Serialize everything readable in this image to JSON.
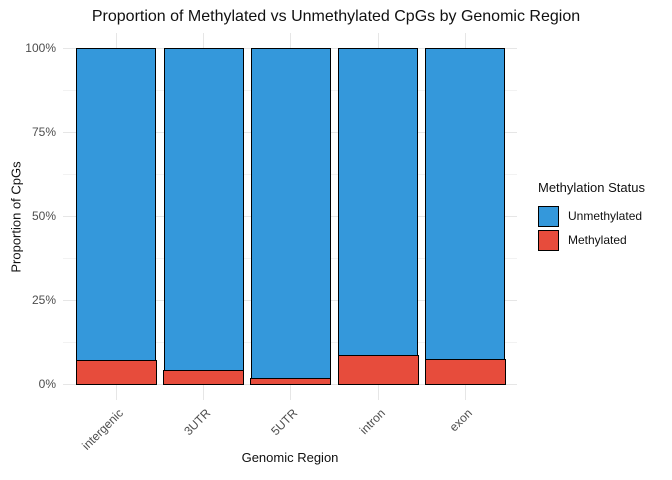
{
  "title": "Proportion of Methylated vs Unmethylated CpGs by Genomic Region",
  "chart_data": {
    "type": "bar",
    "stacked": true,
    "normalized_percent": true,
    "title": "Proportion of Methylated vs Unmethylated CpGs by Genomic Region",
    "xlabel": "Genomic Region",
    "ylabel": "Proportion of CpGs",
    "categories": [
      "intergenic",
      "3UTR",
      "5UTR",
      "intron",
      "exon"
    ],
    "series": [
      {
        "name": "Unmethylated",
        "color": "#3498db",
        "values": [
          93.2,
          96.2,
          98.4,
          91.7,
          92.8
        ]
      },
      {
        "name": "Methylated",
        "color": "#e74c3c",
        "values": [
          6.8,
          3.8,
          1.6,
          8.3,
          7.2
        ]
      }
    ],
    "ylim": [
      0,
      100
    ],
    "y_major_ticks_percent": [
      0,
      25,
      50,
      75,
      100
    ],
    "y_tick_labels": [
      "0%",
      "25%",
      "50%",
      "75%",
      "100%"
    ],
    "y_minor_ticks_percent": [
      12.5,
      37.5,
      62.5,
      87.5
    ],
    "legend_title": "Methylation Status",
    "legend_position": "right",
    "grid": "on",
    "bar_border_color": "#000000",
    "major_grid_color": "#e6e6e6",
    "minor_grid_color": "#f2f2f2",
    "axis_text_color": "#4d4d4d",
    "background_color": "#ffffff"
  }
}
